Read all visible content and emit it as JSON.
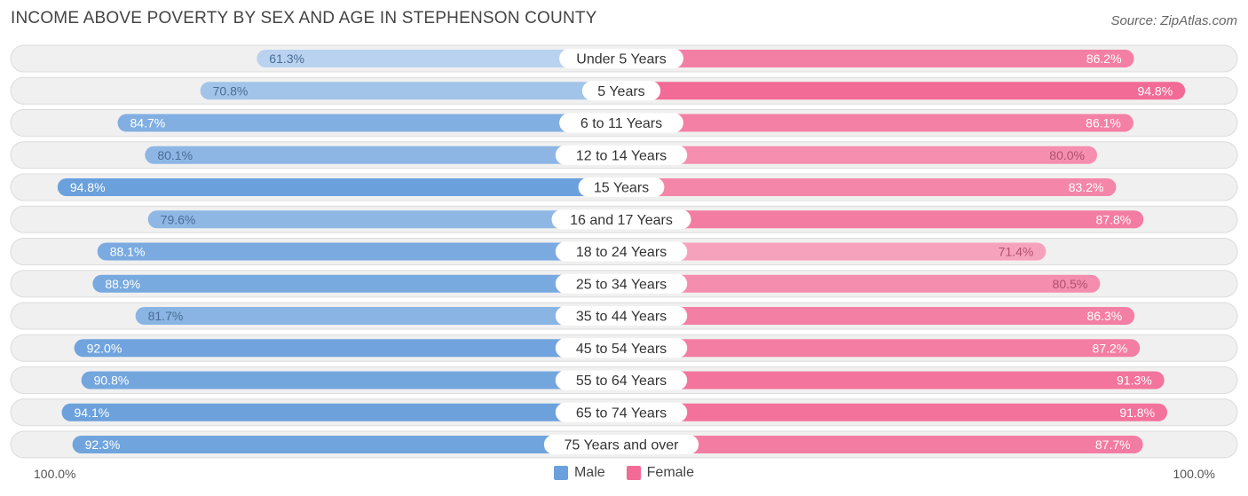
{
  "title": "INCOME ABOVE POVERTY BY SEX AND AGE IN STEPHENSON COUNTY",
  "source": "Source: ZipAtlas.com",
  "axis": {
    "left_label": "100.0%",
    "right_label": "100.0%"
  },
  "legend": {
    "male_label": "Male",
    "female_label": "Female"
  },
  "colors": {
    "male": "#6aa0dc",
    "female": "#f26b96",
    "row_bg": "#f0f0f0",
    "row_border": "#dcdcdc"
  },
  "chart_data": {
    "type": "bar",
    "orientation": "horizontal-diverging",
    "title": "INCOME ABOVE POVERTY BY SEX AND AGE IN STEPHENSON COUNTY",
    "categories": [
      "Under 5 Years",
      "5 Years",
      "6 to 11 Years",
      "12 to 14 Years",
      "15 Years",
      "16 and 17 Years",
      "18 to 24 Years",
      "25 to 34 Years",
      "35 to 44 Years",
      "45 to 54 Years",
      "55 to 64 Years",
      "65 to 74 Years",
      "75 Years and over"
    ],
    "series": [
      {
        "name": "Male",
        "values": [
          61.3,
          70.8,
          84.7,
          80.1,
          94.8,
          79.6,
          88.1,
          88.9,
          81.7,
          92.0,
          90.8,
          94.1,
          92.3
        ]
      },
      {
        "name": "Female",
        "values": [
          86.2,
          94.8,
          86.1,
          80.0,
          83.2,
          87.8,
          71.4,
          80.5,
          86.3,
          87.2,
          91.3,
          91.8,
          87.7
        ]
      }
    ],
    "xlim": [
      0,
      100
    ],
    "unit": "%",
    "legend_position": "bottom-center"
  }
}
